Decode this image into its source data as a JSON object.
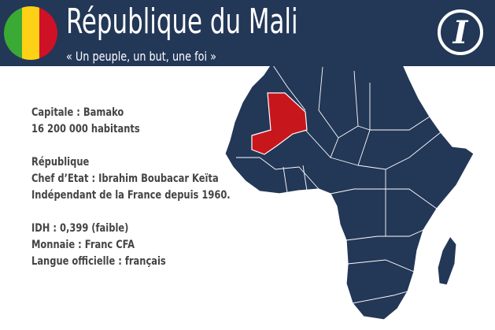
{
  "header": {
    "title": "République du Mali",
    "motto": "« Un peuple, un but, une foi »",
    "logo_text": "I",
    "flag_colors": [
      "#3aaa35",
      "#fcd116",
      "#ce1126"
    ]
  },
  "info": {
    "capital": "Capitale : Bamako",
    "population": " 16 200 000 habitants",
    "regime": "République",
    "head_of_state": "Chef d’Etat : Ibrahim Boubacar Keïta",
    "independence": "Indépendant de la France depuis 1960.",
    "hdi": "IDH :  0,399 (faible)",
    "currency": "Monnaie : Franc CFA",
    "language": "Langue officielle : français"
  },
  "map": {
    "highlighted_country": "Mali",
    "highlight_color": "#c8161d",
    "land_color": "#233757",
    "border_color": "#ffffff"
  }
}
